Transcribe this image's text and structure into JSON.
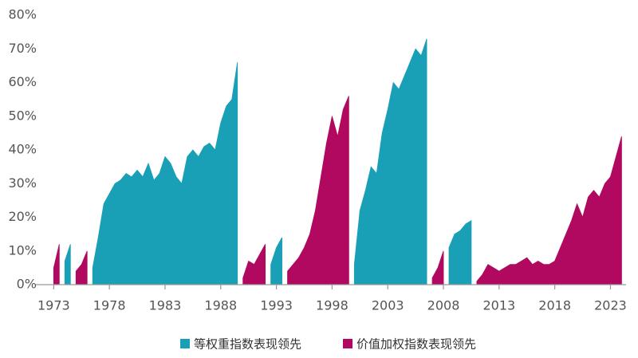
{
  "chart_data": {
    "type": "area",
    "x": [
      1973,
      1973.5,
      1974,
      1974.5,
      1975,
      1975.5,
      1976,
      1976.5,
      1977,
      1977.5,
      1978,
      1978.5,
      1979,
      1979.5,
      1980,
      1980.5,
      1981,
      1981.5,
      1982,
      1982.5,
      1983,
      1983.5,
      1984,
      1984.5,
      1985,
      1985.5,
      1986,
      1986.5,
      1987,
      1987.5,
      1988,
      1988.5,
      1989,
      1989.5,
      1990,
      1990.5,
      1991,
      1991.5,
      1992,
      1992.5,
      1993,
      1993.5,
      1994,
      1994.5,
      1995,
      1995.5,
      1996,
      1996.5,
      1997,
      1997.5,
      1998,
      1998.5,
      1999,
      1999.5,
      2000,
      2000.5,
      2001,
      2001.5,
      2002,
      2002.5,
      2003,
      2003.5,
      2004,
      2004.5,
      2005,
      2005.5,
      2006,
      2006.5,
      2007,
      2007.5,
      2008,
      2008.5,
      2009,
      2009.5,
      2010,
      2010.5,
      2011,
      2011.5,
      2012,
      2012.5,
      2013,
      2013.5,
      2014,
      2014.5,
      2015,
      2015.5,
      2016,
      2016.5,
      2017,
      2017.5,
      2018,
      2018.5,
      2019,
      2019.5,
      2020,
      2020.5,
      2021,
      2021.5,
      2022,
      2022.5,
      2023,
      2023.5,
      2024
    ],
    "series": [
      {
        "name": "等权重指数表现领先",
        "color": "#1aa0b6",
        "values": [
          null,
          null,
          7,
          12,
          null,
          null,
          null,
          5,
          14,
          24,
          27,
          30,
          31,
          33,
          32,
          34,
          32,
          36,
          31,
          33,
          38,
          36,
          32,
          30,
          38,
          40,
          38,
          41,
          42,
          40,
          48,
          53,
          55,
          66,
          null,
          null,
          null,
          null,
          null,
          6,
          11,
          14,
          null,
          null,
          null,
          null,
          null,
          null,
          null,
          null,
          null,
          null,
          null,
          null,
          6,
          22,
          28,
          35,
          33,
          45,
          52,
          60,
          58,
          62,
          66,
          70,
          68,
          73,
          null,
          null,
          null,
          11,
          15,
          16,
          18,
          19,
          null,
          null,
          null,
          null,
          null,
          null,
          null,
          null,
          null,
          null,
          null,
          null,
          null,
          null,
          null,
          null,
          null,
          null,
          null,
          null,
          null,
          null,
          null,
          null,
          null,
          null,
          null
        ]
      },
      {
        "name": "价值加权指数表现领先",
        "color": "#b0095f",
        "values": [
          5,
          12,
          null,
          null,
          4,
          6,
          10,
          null,
          null,
          null,
          null,
          null,
          null,
          null,
          null,
          null,
          null,
          null,
          null,
          null,
          null,
          null,
          null,
          null,
          null,
          null,
          null,
          null,
          null,
          null,
          null,
          null,
          null,
          null,
          2,
          7,
          6,
          9,
          12,
          null,
          null,
          null,
          4,
          6,
          8,
          11,
          15,
          22,
          32,
          42,
          50,
          44,
          52,
          56,
          null,
          null,
          null,
          null,
          null,
          null,
          null,
          null,
          null,
          null,
          null,
          null,
          null,
          null,
          2,
          5,
          10,
          null,
          null,
          null,
          null,
          null,
          1,
          3,
          6,
          5,
          4,
          5,
          6,
          6,
          7,
          8,
          6,
          7,
          6,
          6,
          7,
          11,
          15,
          19,
          24,
          20,
          26,
          28,
          26,
          30,
          32,
          38,
          44
        ]
      }
    ],
    "xlim": [
      1971.4,
      2024.4
    ],
    "xticks": [
      1973,
      1978,
      1983,
      1988,
      1993,
      1998,
      2003,
      2008,
      2013,
      2018,
      2023
    ],
    "ylim": [
      0,
      80
    ],
    "yticks": [
      {
        "value": 0,
        "label": "0%"
      },
      {
        "value": 10,
        "label": "10%"
      },
      {
        "value": 20,
        "label": "20%"
      },
      {
        "value": 30,
        "label": "30%"
      },
      {
        "value": 40,
        "label": "40%"
      },
      {
        "value": 50,
        "label": "50%"
      },
      {
        "value": 60,
        "label": "60%"
      },
      {
        "value": 70,
        "label": "70%"
      },
      {
        "value": 80,
        "label": "80%"
      }
    ]
  }
}
